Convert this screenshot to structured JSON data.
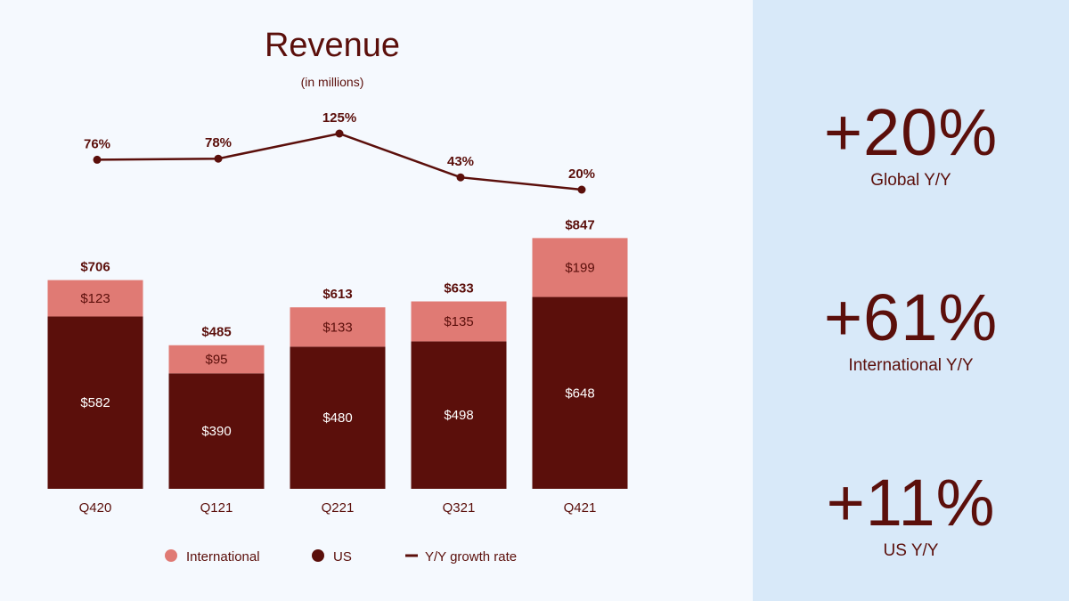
{
  "chart_data": {
    "type": "bar",
    "stacked": true,
    "title": "Revenue",
    "subtitle": "(in millions)",
    "categories": [
      "Q420",
      "Q121",
      "Q221",
      "Q321",
      "Q421"
    ],
    "series": [
      {
        "name": "US",
        "values": [
          582,
          390,
          480,
          498,
          648
        ],
        "labels": [
          "$582",
          "$390",
          "$480",
          "$498",
          "$648"
        ],
        "color": "#5b0f0b"
      },
      {
        "name": "International",
        "values": [
          123,
          95,
          133,
          135,
          199
        ],
        "labels": [
          "$123",
          "$95",
          "$133",
          "$135",
          "$199"
        ],
        "color": "#e07a74"
      }
    ],
    "totals": [
      706,
      485,
      613,
      633,
      847
    ],
    "total_labels": [
      "$706",
      "$485",
      "$613",
      "$633",
      "$847"
    ],
    "growth": {
      "name": "Y/Y growth rate",
      "values": [
        76,
        78,
        125,
        43,
        20
      ],
      "labels": [
        "76%",
        "78%",
        "125%",
        "43%",
        "20%"
      ],
      "color": "#5b0f0b"
    },
    "legend": {
      "position": "bottom",
      "items": [
        {
          "label": "International",
          "marker": "dot",
          "color": "#e07a74"
        },
        {
          "label": "US",
          "marker": "dot",
          "color": "#5b0f0b"
        },
        {
          "label": "Y/Y growth rate",
          "marker": "line",
          "color": "#5b0f0b"
        }
      ]
    },
    "grid": false
  },
  "stats": [
    {
      "value": "+20%",
      "label": "Global Y/Y"
    },
    {
      "value": "+61%",
      "label": "International Y/Y"
    },
    {
      "value": "+11%",
      "label": "US Y/Y"
    }
  ],
  "colors": {
    "primary": "#5b0f0b",
    "international": "#e07a74",
    "panel": "#d8e9f9",
    "background": "#f5f9fe"
  }
}
